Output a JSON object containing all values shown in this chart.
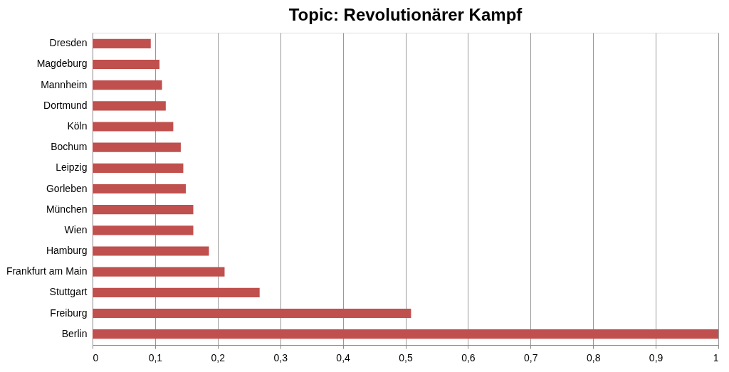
{
  "chart_data": {
    "type": "bar",
    "orientation": "horizontal",
    "title": "Topic: Revolutionärer Kampf",
    "categories": [
      "Dresden",
      "Magdeburg",
      "Mannheim",
      "Dortmund",
      "Köln",
      "Bochum",
      "Leipzig",
      "Gorleben",
      "München",
      "Wien",
      "Hamburg",
      "Frankfurt am Main",
      "Stuttgart",
      "Freiburg",
      "Berlin"
    ],
    "values": [
      0.093,
      0.107,
      0.111,
      0.117,
      0.129,
      0.141,
      0.145,
      0.149,
      0.161,
      0.161,
      0.186,
      0.211,
      0.267,
      0.509,
      1.0
    ],
    "color": "#c0504d",
    "xlim": [
      0,
      1
    ],
    "xticks": [
      0,
      {
        "value": 0.1,
        "label": "0,1"
      },
      {
        "value": 0.2,
        "label": "0,2"
      },
      {
        "value": 0.3,
        "label": "0,3"
      },
      {
        "value": 0.4,
        "label": "0,4"
      },
      {
        "value": 0.5,
        "label": "0,5"
      },
      {
        "value": 0.6,
        "label": "0,6"
      },
      {
        "value": 0.7,
        "label": "0,7"
      },
      {
        "value": 0.8,
        "label": "0,8"
      },
      {
        "value": 0.9,
        "label": "0,9"
      },
      1
    ],
    "grid": "x"
  }
}
